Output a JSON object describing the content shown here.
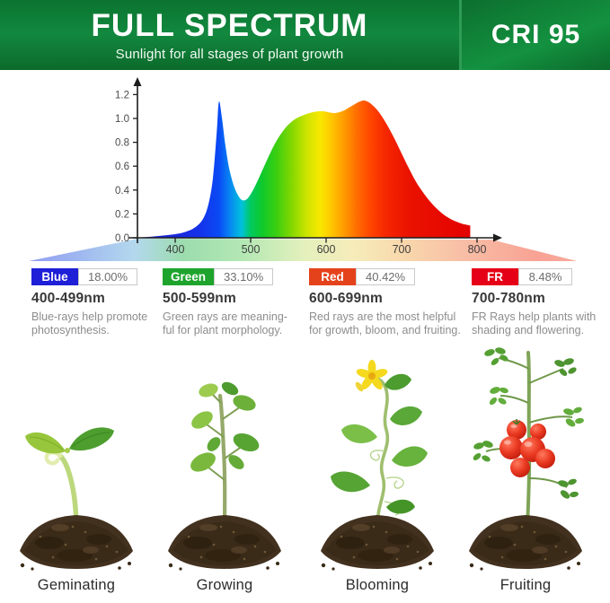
{
  "header": {
    "title": "FULL SPECTRUM",
    "subtitle": "Sunlight for all stages of plant growth",
    "cri_badge": "CRI 95",
    "banner_green": "#12883f"
  },
  "chart_data": {
    "type": "area",
    "title": "",
    "xlabel": "",
    "ylabel": "",
    "xlim": [
      350,
      810
    ],
    "ylim": [
      0,
      1.3
    ],
    "grid": false,
    "xticks": [
      400,
      500,
      600,
      700,
      800
    ],
    "yticks": [
      "0.0",
      "0.2",
      "0.4",
      "0.6",
      "0.8",
      "1.0",
      "1.2"
    ],
    "points": [
      [
        350,
        0
      ],
      [
        378,
        0.015
      ],
      [
        400,
        0.03
      ],
      [
        414,
        0.05
      ],
      [
        427,
        0.09
      ],
      [
        437,
        0.16
      ],
      [
        444,
        0.28
      ],
      [
        450,
        0.5
      ],
      [
        455,
        0.88
      ],
      [
        458,
        1.14
      ],
      [
        462,
        1.0
      ],
      [
        466,
        0.8
      ],
      [
        471,
        0.6
      ],
      [
        477,
        0.45
      ],
      [
        483,
        0.36
      ],
      [
        489,
        0.315
      ],
      [
        496,
        0.33
      ],
      [
        504,
        0.41
      ],
      [
        513,
        0.53
      ],
      [
        523,
        0.67
      ],
      [
        534,
        0.81
      ],
      [
        546,
        0.92
      ],
      [
        558,
        0.99
      ],
      [
        571,
        1.03
      ],
      [
        584,
        1.055
      ],
      [
        596,
        1.06
      ],
      [
        606,
        1.048
      ],
      [
        613,
        1.046
      ],
      [
        623,
        1.065
      ],
      [
        634,
        1.105
      ],
      [
        644,
        1.14
      ],
      [
        651,
        1.15
      ],
      [
        659,
        1.125
      ],
      [
        669,
        1.06
      ],
      [
        679,
        0.965
      ],
      [
        689,
        0.85
      ],
      [
        699,
        0.72
      ],
      [
        709,
        0.59
      ],
      [
        719,
        0.47
      ],
      [
        729,
        0.375
      ],
      [
        739,
        0.295
      ],
      [
        749,
        0.23
      ],
      [
        759,
        0.18
      ],
      [
        769,
        0.145
      ],
      [
        779,
        0.12
      ],
      [
        787,
        0.108
      ],
      [
        791,
        0.103
      ]
    ],
    "gradient": [
      {
        "offset": "0%",
        "color": "#1b1bc8"
      },
      {
        "offset": "17.8%",
        "color": "#1530e8"
      },
      {
        "offset": "24%",
        "color": "#0a4af5"
      },
      {
        "offset": "27.1%",
        "color": "#0784f2"
      },
      {
        "offset": "30.7%",
        "color": "#00c2dc"
      },
      {
        "offset": "33.3%",
        "color": "#00c960"
      },
      {
        "offset": "36.7%",
        "color": "#0fc92b"
      },
      {
        "offset": "41.1%",
        "color": "#3ecf10"
      },
      {
        "offset": "45.6%",
        "color": "#86d800"
      },
      {
        "offset": "50%",
        "color": "#cfe400"
      },
      {
        "offset": "53.8%",
        "color": "#f8e800"
      },
      {
        "offset": "57.3%",
        "color": "#ffc400"
      },
      {
        "offset": "61.1%",
        "color": "#ff9800"
      },
      {
        "offset": "64.9%",
        "color": "#ff6a00"
      },
      {
        "offset": "68.9%",
        "color": "#ff4300"
      },
      {
        "offset": "73.3%",
        "color": "#f52600"
      },
      {
        "offset": "80%",
        "color": "#ea1200"
      },
      {
        "offset": "100%",
        "color": "#e30000"
      }
    ],
    "beam_colors": [
      {
        "offset": "0%",
        "color": "#8b8ef2"
      },
      {
        "offset": "12%",
        "color": "#9db4f0"
      },
      {
        "offset": "22%",
        "color": "#b3d8ee"
      },
      {
        "offset": "30%",
        "color": "#9cdcae"
      },
      {
        "offset": "40%",
        "color": "#b4e8b4"
      },
      {
        "offset": "50%",
        "color": "#e4f0bc"
      },
      {
        "offset": "58%",
        "color": "#f6ecba"
      },
      {
        "offset": "66%",
        "color": "#f8d8ac"
      },
      {
        "offset": "76%",
        "color": "#f8bea6"
      },
      {
        "offset": "88%",
        "color": "#f8a294"
      },
      {
        "offset": "100%",
        "color": "#f8b0a4"
      }
    ]
  },
  "bands": [
    {
      "label": "Blue",
      "color": "#1f1fd8",
      "percent": "18.00%",
      "range": "400-499nm",
      "desc_line1": "Blue-rays help promote",
      "desc_line2": "photosynthesis."
    },
    {
      "label": "Green",
      "color": "#1ea42c",
      "percent": "33.10%",
      "range": "500-599nm",
      "desc_line1": "Green rays are meaning-",
      "desc_line2": "ful for plant morphology."
    },
    {
      "label": "Red",
      "color": "#e4421a",
      "percent": "40.42%",
      "range": "600-699nm",
      "desc_line1": "Red rays are the most helpful",
      "desc_line2": "for growth, bloom, and fruiting."
    },
    {
      "label": "FR",
      "color": "#e60017",
      "percent": "8.48%",
      "range": "700-780nm",
      "desc_line1": "FR Rays help plants with",
      "desc_line2": "shading and flowering."
    }
  ],
  "stages": [
    {
      "label": "Geminating"
    },
    {
      "label": "Growing"
    },
    {
      "label": "Blooming"
    },
    {
      "label": "Fruiting"
    }
  ]
}
